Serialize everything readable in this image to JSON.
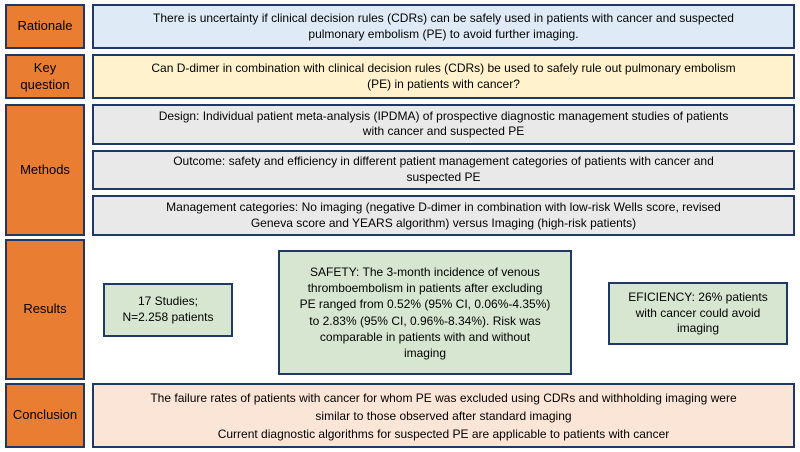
{
  "sections": {
    "rationale": {
      "label": "Rationale",
      "text": "There is uncertainty if clinical decision rules (CDRs) can be safely used in patients with cancer and suspected\npulmonary embolism (PE) to avoid further imaging."
    },
    "key_question": {
      "label": "Key\nquestion",
      "text": "Can D-dimer in combination with clinical decision rules (CDRs) be used to safely rule out pulmonary embolism\n(PE) in patients with cancer?"
    },
    "methods": {
      "label": "Methods",
      "design": "Design: Individual patient meta-analysis (IPDMA) of prospective diagnostic management studies of patients\nwith cancer and suspected PE",
      "outcome": "Outcome: safety and efficiency in different patient management categories of patients with cancer and\nsuspected PE",
      "management": "Management categories: No imaging (negative D-dimer in combination with low-risk Wells score, revised\nGeneva score and YEARS algorithm) versus Imaging (high-risk patients)"
    },
    "results": {
      "label": "Results",
      "studies": "17 Studies;\nN=2.258 patients",
      "safety": "SAFETY: The 3-month incidence of venous\nthromboembolism in patients after excluding\nPE ranged from 0.52% (95% CI, 0.06%-4.35%)\nto 2.83% (95% CI, 0.96%-8.34%). Risk was\ncomparable in patients with and without\nimaging",
      "efficiency": "EFICIENCY: 26% patients\nwith cancer could avoid\nimaging"
    },
    "conclusion": {
      "label": "Conclusion",
      "text": "The failure rates of patients with cancer for whom PE was excluded using CDRs and withholding imaging were\nsimilar to those observed after standard imaging\nCurrent diagnostic algorithms for suspected PE are applicable to patients with cancer"
    }
  },
  "colors": {
    "label_fill": "#E97D32",
    "border": "#1F3864",
    "rationale_fill": "#DEEBF7",
    "key_question_fill": "#FFF2CC",
    "methods_fill": "#E9E9E9",
    "results_fill": "#D7E6D0",
    "conclusion_fill": "#FBE5D6",
    "text": "#000000"
  }
}
